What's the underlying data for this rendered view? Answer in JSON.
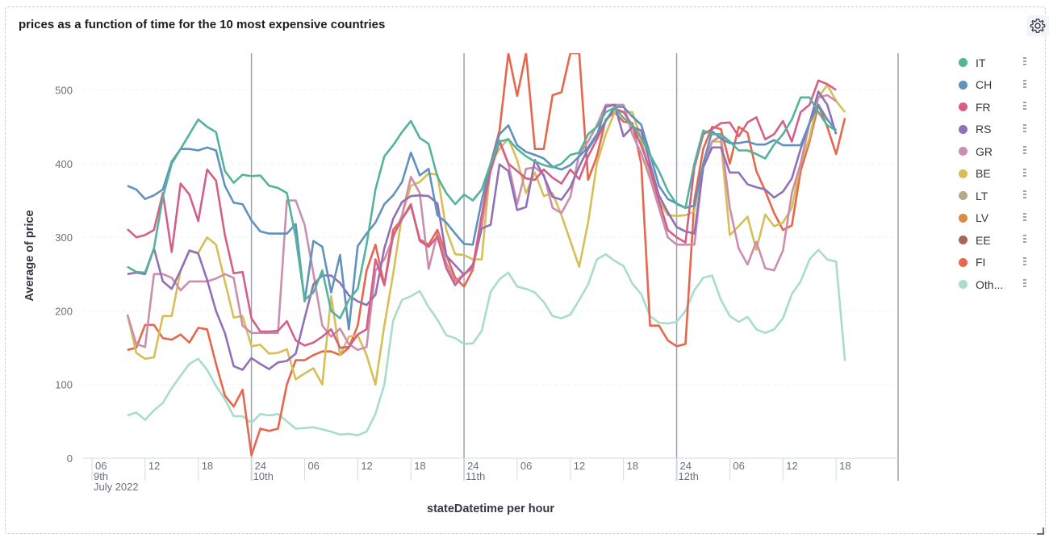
{
  "panel": {
    "title": "prices as a function of time for the 10 most expensive countries"
  },
  "icons": {
    "settings": "gear-icon",
    "resize": "resize-handle-icon",
    "legend_menu": "vertical-dots-icon"
  },
  "chart_data": {
    "type": "line",
    "title": "prices as a function of time for the 10 most expensive countries",
    "xlabel": "stateDatetime per hour",
    "ylabel": "Average of price",
    "ylim": [
      0,
      550
    ],
    "y_ticks": [
      "0",
      "100",
      "200",
      "300",
      "400",
      "500"
    ],
    "x_ticks": [
      {
        "h": 6,
        "label": "06",
        "sub": "9th",
        "sub2": "July 2022"
      },
      {
        "h": 12,
        "label": "12"
      },
      {
        "h": 18,
        "label": "18"
      },
      {
        "h": 24,
        "label": "24",
        "sub": "10th"
      },
      {
        "h": 30,
        "label": "06"
      },
      {
        "h": 36,
        "label": "12"
      },
      {
        "h": 42,
        "label": "18"
      },
      {
        "h": 48,
        "label": "24",
        "sub": "11th"
      },
      {
        "h": 54,
        "label": "06"
      },
      {
        "h": 60,
        "label": "12"
      },
      {
        "h": 66,
        "label": "18"
      },
      {
        "h": 72,
        "label": "24",
        "sub": "12th"
      },
      {
        "h": 78,
        "label": "06"
      },
      {
        "h": 84,
        "label": "12"
      },
      {
        "h": 90,
        "label": "18"
      }
    ],
    "day_boundaries_h": [
      24,
      48,
      72
    ],
    "x_range_h": [
      5,
      97
    ],
    "x_start_h": 10,
    "legend_position": "right",
    "grid": "horizontal dashed",
    "series": [
      {
        "name": "IT",
        "color": "#54b399",
        "values": [
          260,
          253,
          252,
          285,
          355,
          400,
          420,
          440,
          460,
          450,
          443,
          390,
          374,
          385,
          383,
          384,
          370,
          367,
          360,
          300,
          215,
          225,
          255,
          200,
          190,
          215,
          230,
          290,
          365,
          410,
          425,
          443,
          458,
          435,
          427,
          382,
          360,
          345,
          358,
          350,
          365,
          400,
          430,
          433,
          420,
          410,
          403,
          398,
          395,
          400,
          412,
          415,
          440,
          450,
          470,
          476,
          462,
          453,
          435,
          412,
          390,
          363,
          345,
          340,
          400,
          445,
          440,
          440,
          430,
          418,
          418,
          413,
          407,
          426,
          440,
          460,
          490,
          490,
          470,
          452,
          445
        ]
      },
      {
        "name": "CH",
        "color": "#6092c0",
        "values": [
          370,
          365,
          352,
          357,
          365,
          403,
          420,
          420,
          418,
          422,
          418,
          370,
          347,
          345,
          323,
          308,
          305,
          305,
          305,
          318,
          213,
          295,
          287,
          225,
          276,
          175,
          288,
          305,
          320,
          345,
          357,
          375,
          415,
          384,
          393,
          330,
          320,
          305,
          291,
          290,
          350,
          400,
          440,
          452,
          425,
          416,
          412,
          407,
          396,
          392,
          398,
          410,
          422,
          440,
          458,
          477,
          477,
          464,
          453,
          413,
          370,
          352,
          346,
          340,
          343,
          400,
          444,
          434,
          428,
          428,
          430,
          426,
          426,
          432,
          425,
          425,
          425,
          455,
          480,
          460,
          445
        ]
      },
      {
        "name": "FR",
        "color": "#d36086",
        "values": [
          311,
          300,
          303,
          310,
          360,
          280,
          373,
          358,
          322,
          392,
          377,
          303,
          251,
          253,
          190,
          172,
          172,
          173,
          186,
          160,
          153,
          157,
          165,
          175,
          150,
          151,
          168,
          175,
          270,
          235,
          302,
          325,
          345,
          295,
          287,
          301,
          258,
          235,
          250,
          260,
          330,
          390,
          430,
          400,
          390,
          380,
          378,
          392,
          381,
          373,
          392,
          379,
          410,
          433,
          458,
          475,
          470,
          452,
          425,
          392,
          350,
          310,
          300,
          293,
          395,
          440,
          447,
          455,
          456,
          437,
          456,
          463,
          433,
          440,
          458,
          430,
          470,
          480,
          513,
          508,
          500
        ]
      },
      {
        "name": "RS",
        "color": "#9170b8",
        "values": [
          250,
          252,
          250,
          285,
          240,
          230,
          255,
          282,
          278,
          242,
          200,
          170,
          125,
          120,
          136,
          128,
          121,
          130,
          132,
          142,
          190,
          236,
          248,
          248,
          238,
          221,
          213,
          208,
          222,
          285,
          325,
          348,
          356,
          357,
          356,
          346,
          275,
          262,
          249,
          263,
          312,
          317,
          399,
          390,
          337,
          341,
          405,
          383,
          355,
          351,
          368,
          396,
          420,
          438,
          477,
          480,
          437,
          450,
          445,
          400,
          357,
          334,
          314,
          308,
          305,
          395,
          422,
          422,
          388,
          388,
          372,
          368,
          365,
          354,
          362,
          380,
          420,
          455,
          498,
          480,
          440
        ]
      },
      {
        "name": "GR",
        "color": "#ca8eae",
        "values": [
          195,
          155,
          151,
          250,
          250,
          245,
          228,
          240,
          240,
          240,
          244,
          250,
          245,
          180,
          170,
          170,
          170,
          170,
          350,
          350,
          317,
          251,
          180,
          165,
          176,
          155,
          147,
          151,
          255,
          270,
          300,
          330,
          382,
          360,
          257,
          305,
          265,
          240,
          250,
          258,
          313,
          400,
          432,
          400,
          345,
          393,
          395,
          385,
          340,
          333,
          355,
          413,
          430,
          452,
          480,
          480,
          480,
          440,
          414,
          380,
          340,
          300,
          290,
          290,
          290,
          398,
          430,
          438,
          340,
          285,
          263,
          294,
          258,
          255,
          282,
          360,
          400,
          455,
          490,
          493,
          485
        ]
      },
      {
        "name": "BE",
        "color": "#d6bf57",
        "values": [
          195,
          143,
          135,
          137,
          193,
          193,
          255,
          282,
          279,
          300,
          290,
          240,
          191,
          193,
          152,
          154,
          142,
          143,
          148,
          107,
          115,
          122,
          100,
          220,
          140,
          165,
          167,
          140,
          100,
          180,
          250,
          330,
          370,
          375,
          387,
          385,
          310,
          277,
          276,
          270,
          270,
          400,
          420,
          434,
          405,
          360,
          388,
          356,
          360,
          330,
          295,
          260,
          320,
          400,
          440,
          470,
          470,
          470,
          433,
          383,
          350,
          330,
          329,
          330,
          335,
          400,
          430,
          430,
          303,
          315,
          328,
          283,
          331,
          315,
          320,
          340,
          400,
          435,
          490,
          507,
          485,
          470
        ]
      },
      {
        "name": "LT",
        "color": "#b9a888",
        "values": [
          null
        ]
      },
      {
        "name": "LV",
        "color": "#da8b45",
        "values": [
          null
        ]
      },
      {
        "name": "EE",
        "color": "#aa6556",
        "values": [
          null
        ]
      },
      {
        "name": "FI",
        "color": "#e7664c",
        "values": [
          147,
          150,
          181,
          181,
          163,
          161,
          168,
          157,
          177,
          175,
          128,
          85,
          70,
          93,
          4,
          40,
          37,
          40,
          100,
          133,
          133,
          140,
          145,
          145,
          140,
          150,
          180,
          255,
          290,
          235,
          310,
          325,
          343,
          297,
          290,
          310,
          276,
          245,
          233,
          256,
          330,
          400,
          445,
          550,
          492,
          550,
          420,
          420,
          493,
          497,
          550,
          550,
          378,
          410,
          460,
          470,
          457,
          455,
          400,
          180,
          180,
          160,
          152,
          155,
          350,
          420,
          450,
          447,
          400,
          450,
          442,
          390,
          363,
          333,
          310,
          316,
          390,
          430,
          480,
          450,
          413,
          462
        ]
      },
      {
        "name": "Oth...",
        "color": "#a8dccd",
        "values": [
          58,
          62,
          52,
          65,
          75,
          95,
          112,
          128,
          135,
          120,
          98,
          80,
          57,
          57,
          48,
          60,
          58,
          60,
          50,
          40,
          41,
          42,
          39,
          36,
          32,
          33,
          31,
          36,
          60,
          100,
          187,
          215,
          220,
          227,
          205,
          188,
          167,
          163,
          155,
          156,
          173,
          226,
          243,
          252,
          233,
          230,
          225,
          212,
          193,
          190,
          195,
          215,
          236,
          270,
          277,
          268,
          261,
          237,
          223,
          193,
          184,
          183,
          185,
          200,
          228,
          245,
          248,
          215,
          193,
          185,
          192,
          175,
          170,
          175,
          190,
          223,
          240,
          270,
          283,
          270,
          267,
          132
        ]
      }
    ]
  }
}
